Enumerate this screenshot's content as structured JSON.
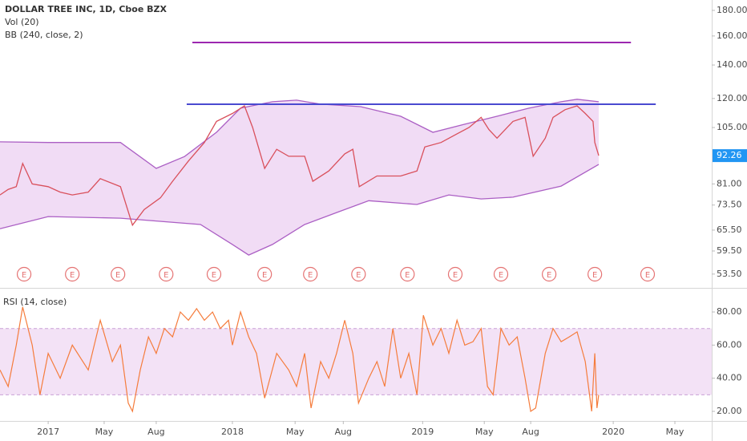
{
  "chart_data": [
    {
      "type": "line",
      "title": "DOLLAR TREE INC, 1D, Cboe BZX",
      "indicators": [
        "Vol (20)",
        "BB (240, close, 2)"
      ],
      "log_scale": true,
      "xlim": [
        -13.6,
        187.3
      ],
      "ylim": [
        50.4,
        188.8
      ],
      "yticks": [
        {
          "value": 180,
          "label": "180.00"
        },
        {
          "value": 160,
          "label": "160.00"
        },
        {
          "value": 140,
          "label": "140.00"
        },
        {
          "value": 120,
          "label": "120.00"
        },
        {
          "value": 105,
          "label": "105.00"
        },
        {
          "value": 81,
          "label": "81.00"
        },
        {
          "value": 73.5,
          "label": "73.50"
        },
        {
          "value": 65.5,
          "label": "65.50"
        },
        {
          "value": 59.5,
          "label": "59.50"
        },
        {
          "value": 53.5,
          "label": "53.50"
        }
      ],
      "price": {
        "color": "#d9505c",
        "x": [
          -13.6,
          -11.3,
          -9.0,
          -7.2,
          -4.5,
          0,
          3.4,
          6.8,
          11.3,
          14.7,
          20.4,
          23.8,
          27.1,
          31.7,
          35.1,
          39.6,
          44.1,
          47.5,
          52.0,
          55.4,
          57.7,
          61.1,
          64.5,
          67.9,
          72.4,
          74.7,
          79.2,
          83.7,
          86.0,
          87.8,
          92.8,
          99.5,
          104.1,
          106.3,
          110.9,
          115.4,
          118.8,
          122.2,
          124.4,
          126.7,
          131.2,
          134.6,
          136.9,
          140.3,
          142.5,
          145.9,
          149.3,
          151.6,
          153.8,
          154.3,
          155.4
        ],
        "values": [
          77,
          79,
          80,
          89,
          81,
          80,
          78,
          77,
          78,
          83,
          80,
          67,
          72,
          76,
          82,
          90,
          98,
          108,
          112,
          116,
          105,
          87,
          95,
          92,
          92,
          82,
          86,
          93,
          95,
          80,
          84,
          84,
          86,
          96,
          98,
          102,
          105,
          110,
          104,
          100,
          108,
          110,
          92,
          100,
          110,
          114,
          116,
          112,
          108,
          98,
          92.26
        ]
      },
      "bollinger": {
        "color": "#ab5fc4",
        "fill": "#f1dcf5",
        "upper": {
          "x": [
            -13.6,
            0,
            20.4,
            30.5,
            38.5,
            47.5,
            54.3,
            63.3,
            70.1,
            76.9,
            88.2,
            99.5,
            108.6,
            117.6,
            126.7,
            135.7,
            144.8,
            149.3,
            155.4
          ],
          "values": [
            98.3,
            98.0,
            98.0,
            87.0,
            91.9,
            102.7,
            114.8,
            118.2,
            119.1,
            116.9,
            115.6,
            110.6,
            102.7,
            106.6,
            110.6,
            114.8,
            118.2,
            119.6,
            118.2
          ]
        },
        "lower": {
          "x": [
            -13.6,
            0,
            20.4,
            43.0,
            52.0,
            56.6,
            63.3,
            72.4,
            81.4,
            90.5,
            104.1,
            113.1,
            122.2,
            131.2,
            144.8,
            155.4
          ],
          "values": [
            65.9,
            69.7,
            69.2,
            67.2,
            61.3,
            58.4,
            61.3,
            67.2,
            71.0,
            75.0,
            73.7,
            77.0,
            75.6,
            76.2,
            80.2,
            88.6
          ]
        }
      },
      "levels": [
        {
          "value": 155.3,
          "x": [
            40.7,
            164.5
          ],
          "color": "#9c27b0"
        },
        {
          "value": 116.9,
          "x": [
            39.1,
            171.5
          ],
          "color": "#4a4ad0"
        }
      ],
      "earnings": {
        "label": "E",
        "color": "#e57373",
        "x": [
          -6.8,
          6.8,
          19.7,
          33.3,
          46.8,
          61.1,
          74.0,
          87.6,
          101.4,
          114.9,
          127.8,
          141.4,
          154.3,
          169.2
        ]
      },
      "last_price": {
        "value": 92.26,
        "color": "#2196f3"
      }
    },
    {
      "type": "line",
      "title": "RSI (14, close)",
      "xlim": [
        -13.6,
        187.3
      ],
      "ylim": [
        14.2,
        93.1
      ],
      "yticks": [
        {
          "value": 80,
          "label": "80.00"
        },
        {
          "value": 60,
          "label": "60.00"
        },
        {
          "value": 40,
          "label": "40.00"
        },
        {
          "value": 20,
          "label": "20.00"
        }
      ],
      "band": [
        30,
        70
      ],
      "band_color": "#f3e2f6",
      "band_line": "#c9a0d6",
      "xticks": [
        {
          "value": 0,
          "label": "2017"
        },
        {
          "value": 15.8,
          "label": "May"
        },
        {
          "value": 30.5,
          "label": "Aug"
        },
        {
          "value": 52.0,
          "label": "2018"
        },
        {
          "value": 69.7,
          "label": "May"
        },
        {
          "value": 83.3,
          "label": "Aug"
        },
        {
          "value": 105.7,
          "label": "2019"
        },
        {
          "value": 123.1,
          "label": "May"
        },
        {
          "value": 136.2,
          "label": "Aug"
        },
        {
          "value": 159.5,
          "label": "2020"
        },
        {
          "value": 176.9,
          "label": "May"
        }
      ],
      "series": [
        {
          "color": "#f57c3c",
          "x": [
            -13.6,
            -11.3,
            -9.0,
            -7.2,
            -4.5,
            -2.3,
            0,
            3.4,
            6.8,
            11.3,
            14.7,
            18.1,
            20.4,
            22.6,
            23.8,
            26.0,
            28.3,
            30.5,
            32.8,
            35.1,
            37.3,
            39.6,
            41.9,
            44.1,
            46.4,
            48.6,
            50.9,
            52.0,
            54.3,
            56.6,
            58.8,
            61.1,
            64.5,
            67.9,
            70.1,
            72.4,
            74.2,
            76.9,
            79.2,
            81.4,
            83.7,
            86.0,
            87.6,
            90.5,
            92.8,
            95.0,
            97.3,
            99.5,
            101.8,
            104.1,
            105.9,
            108.6,
            110.9,
            113.1,
            115.4,
            117.6,
            119.9,
            122.2,
            124.0,
            125.6,
            127.8,
            130.1,
            132.4,
            134.6,
            136.2,
            137.6,
            140.3,
            142.5,
            144.8,
            147.1,
            149.3,
            151.6,
            153.4,
            154.3,
            154.9,
            155.4
          ],
          "values": [
            45,
            35,
            60,
            83,
            60,
            30,
            55,
            40,
            60,
            45,
            75,
            50,
            60,
            25,
            20,
            45,
            65,
            55,
            70,
            65,
            80,
            75,
            82,
            75,
            80,
            70,
            75,
            60,
            80,
            65,
            55,
            28,
            55,
            45,
            35,
            55,
            22,
            50,
            40,
            55,
            75,
            55,
            25,
            40,
            50,
            35,
            70,
            40,
            55,
            30,
            78,
            60,
            70,
            55,
            75,
            60,
            62,
            70,
            35,
            30,
            70,
            60,
            65,
            40,
            20,
            22,
            55,
            70,
            62,
            65,
            68,
            50,
            20,
            55,
            22,
            30
          ]
        }
      ]
    }
  ]
}
